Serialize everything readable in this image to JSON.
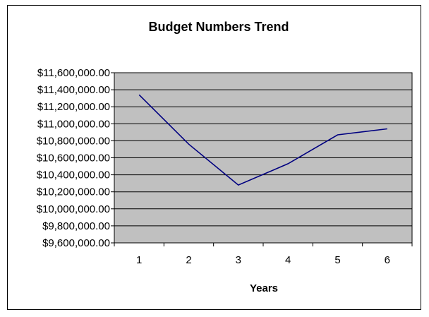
{
  "chart_data": {
    "type": "line",
    "title": "Budget Numbers Trend",
    "xlabel": "Years",
    "ylabel": "",
    "categories": [
      "1",
      "2",
      "3",
      "4",
      "5",
      "6"
    ],
    "series": [
      {
        "values": [
          11340000,
          10760000,
          10280000,
          10530000,
          10870000,
          10940000
        ]
      }
    ],
    "ylim": [
      9600000,
      11600000
    ],
    "yticks": [
      9600000,
      9800000,
      10000000,
      10200000,
      10400000,
      10600000,
      10800000,
      11000000,
      11200000,
      11400000,
      11600000
    ],
    "ytick_labels": [
      "$9,600,000.00",
      "$9,800,000.00",
      "$10,000,000.00",
      "$10,200,000.00",
      "$10,400,000.00",
      "$10,600,000.00",
      "$10,800,000.00",
      "$11,000,000.00",
      "$11,200,000.00",
      "$11,400,000.00",
      "$11,600,000.00"
    ],
    "grid": true,
    "legend": "none",
    "colors": {
      "plot_background": "#c0c0c0",
      "line": "#000080",
      "gridline": "#000000"
    }
  }
}
